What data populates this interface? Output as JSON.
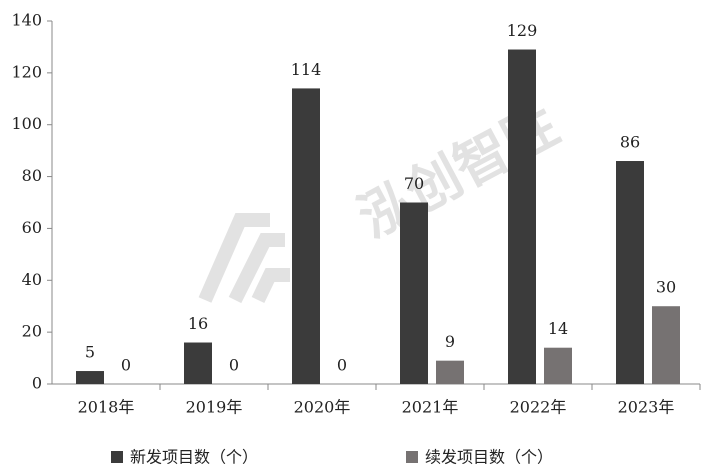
{
  "chart_data": {
    "type": "bar",
    "watermark": "泓创智胜",
    "categories": [
      "2018年",
      "2019年",
      "2020年",
      "2021年",
      "2022年",
      "2023年"
    ],
    "series": [
      {
        "name": "新发项目数（个）",
        "color": "#3b3b3b",
        "values": [
          5,
          16,
          114,
          70,
          129,
          86
        ]
      },
      {
        "name": "续发项目数（个）",
        "color": "#767272",
        "values": [
          0,
          0,
          0,
          9,
          14,
          30
        ]
      }
    ],
    "ylim": [
      0,
      140
    ],
    "yticks": [
      0,
      20,
      40,
      60,
      80,
      100,
      120,
      140
    ],
    "grid": false,
    "legend": "bottom"
  }
}
